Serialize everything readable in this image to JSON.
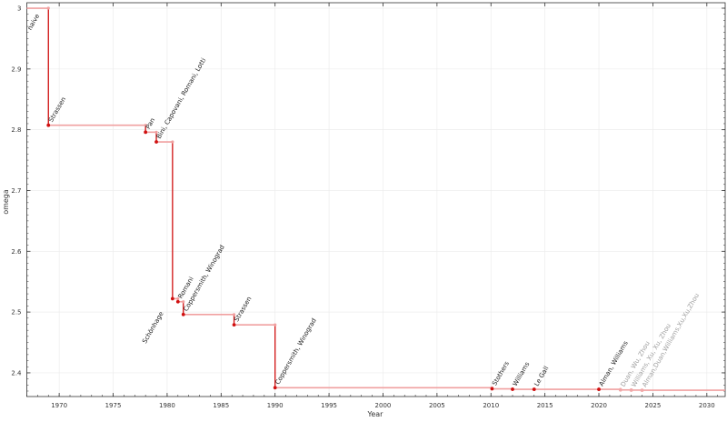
{
  "chart_data": {
    "type": "line",
    "step": true,
    "title": "",
    "xlabel": "Year",
    "ylabel": "omega",
    "xlim": [
      1967,
      2031.7
    ],
    "ylim": [
      2.361,
      3.009
    ],
    "xticks": [
      1970,
      1975,
      1980,
      1985,
      1990,
      1995,
      2000,
      2005,
      2010,
      2015,
      2020,
      2025,
      2030
    ],
    "yticks": [
      2.4,
      2.5,
      2.6,
      2.7,
      2.8,
      2.9,
      3
    ],
    "grid": true,
    "colors": {
      "main": "#d01010",
      "step": "#f0a0a0",
      "recent": "#f0a8a8",
      "recent_label": "#a0a0a0"
    },
    "points": [
      {
        "label": "naive",
        "year": 1967,
        "omega": 3.0,
        "recent": false
      },
      {
        "label": "Strassen",
        "year": 1969,
        "omega": 2.8074,
        "recent": false
      },
      {
        "label": "Pan",
        "year": 1978,
        "omega": 2.796,
        "recent": false
      },
      {
        "label": "Bini, Capovani, Romani, Lotti",
        "year": 1979,
        "omega": 2.78,
        "recent": false
      },
      {
        "label": "Schönhage",
        "year": 1980.5,
        "omega": 2.522,
        "recent": false
      },
      {
        "label": "Romani",
        "year": 1981,
        "omega": 2.517,
        "recent": false
      },
      {
        "label": "Coppersmith, Winograd",
        "year": 1981.5,
        "omega": 2.496,
        "recent": false
      },
      {
        "label": "Strassen",
        "year": 1986.2,
        "omega": 2.479,
        "recent": false
      },
      {
        "label": "Coppersmith, Winograd",
        "year": 1990,
        "omega": 2.3755,
        "recent": false
      },
      {
        "label": "Stothers",
        "year": 2010.1,
        "omega": 2.3737,
        "recent": false
      },
      {
        "label": "Williams",
        "year": 2012,
        "omega": 2.3729,
        "recent": false
      },
      {
        "label": "Le Gall",
        "year": 2014,
        "omega": 2.37286,
        "recent": false
      },
      {
        "label": "Alman, Williams",
        "year": 2020,
        "omega": 2.37286,
        "recent": false
      },
      {
        "label": "Duan, Wu, Zhou",
        "year": 2022,
        "omega": 2.37187,
        "recent": true
      },
      {
        "label": "Williams, Xu, Xu, Zhou",
        "year": 2023,
        "omega": 2.37155,
        "recent": true
      },
      {
        "label": "Alman,Duan,Williams,Xu,Xu,Zhou",
        "year": 2024,
        "omega": 2.37134,
        "recent": true
      }
    ]
  }
}
